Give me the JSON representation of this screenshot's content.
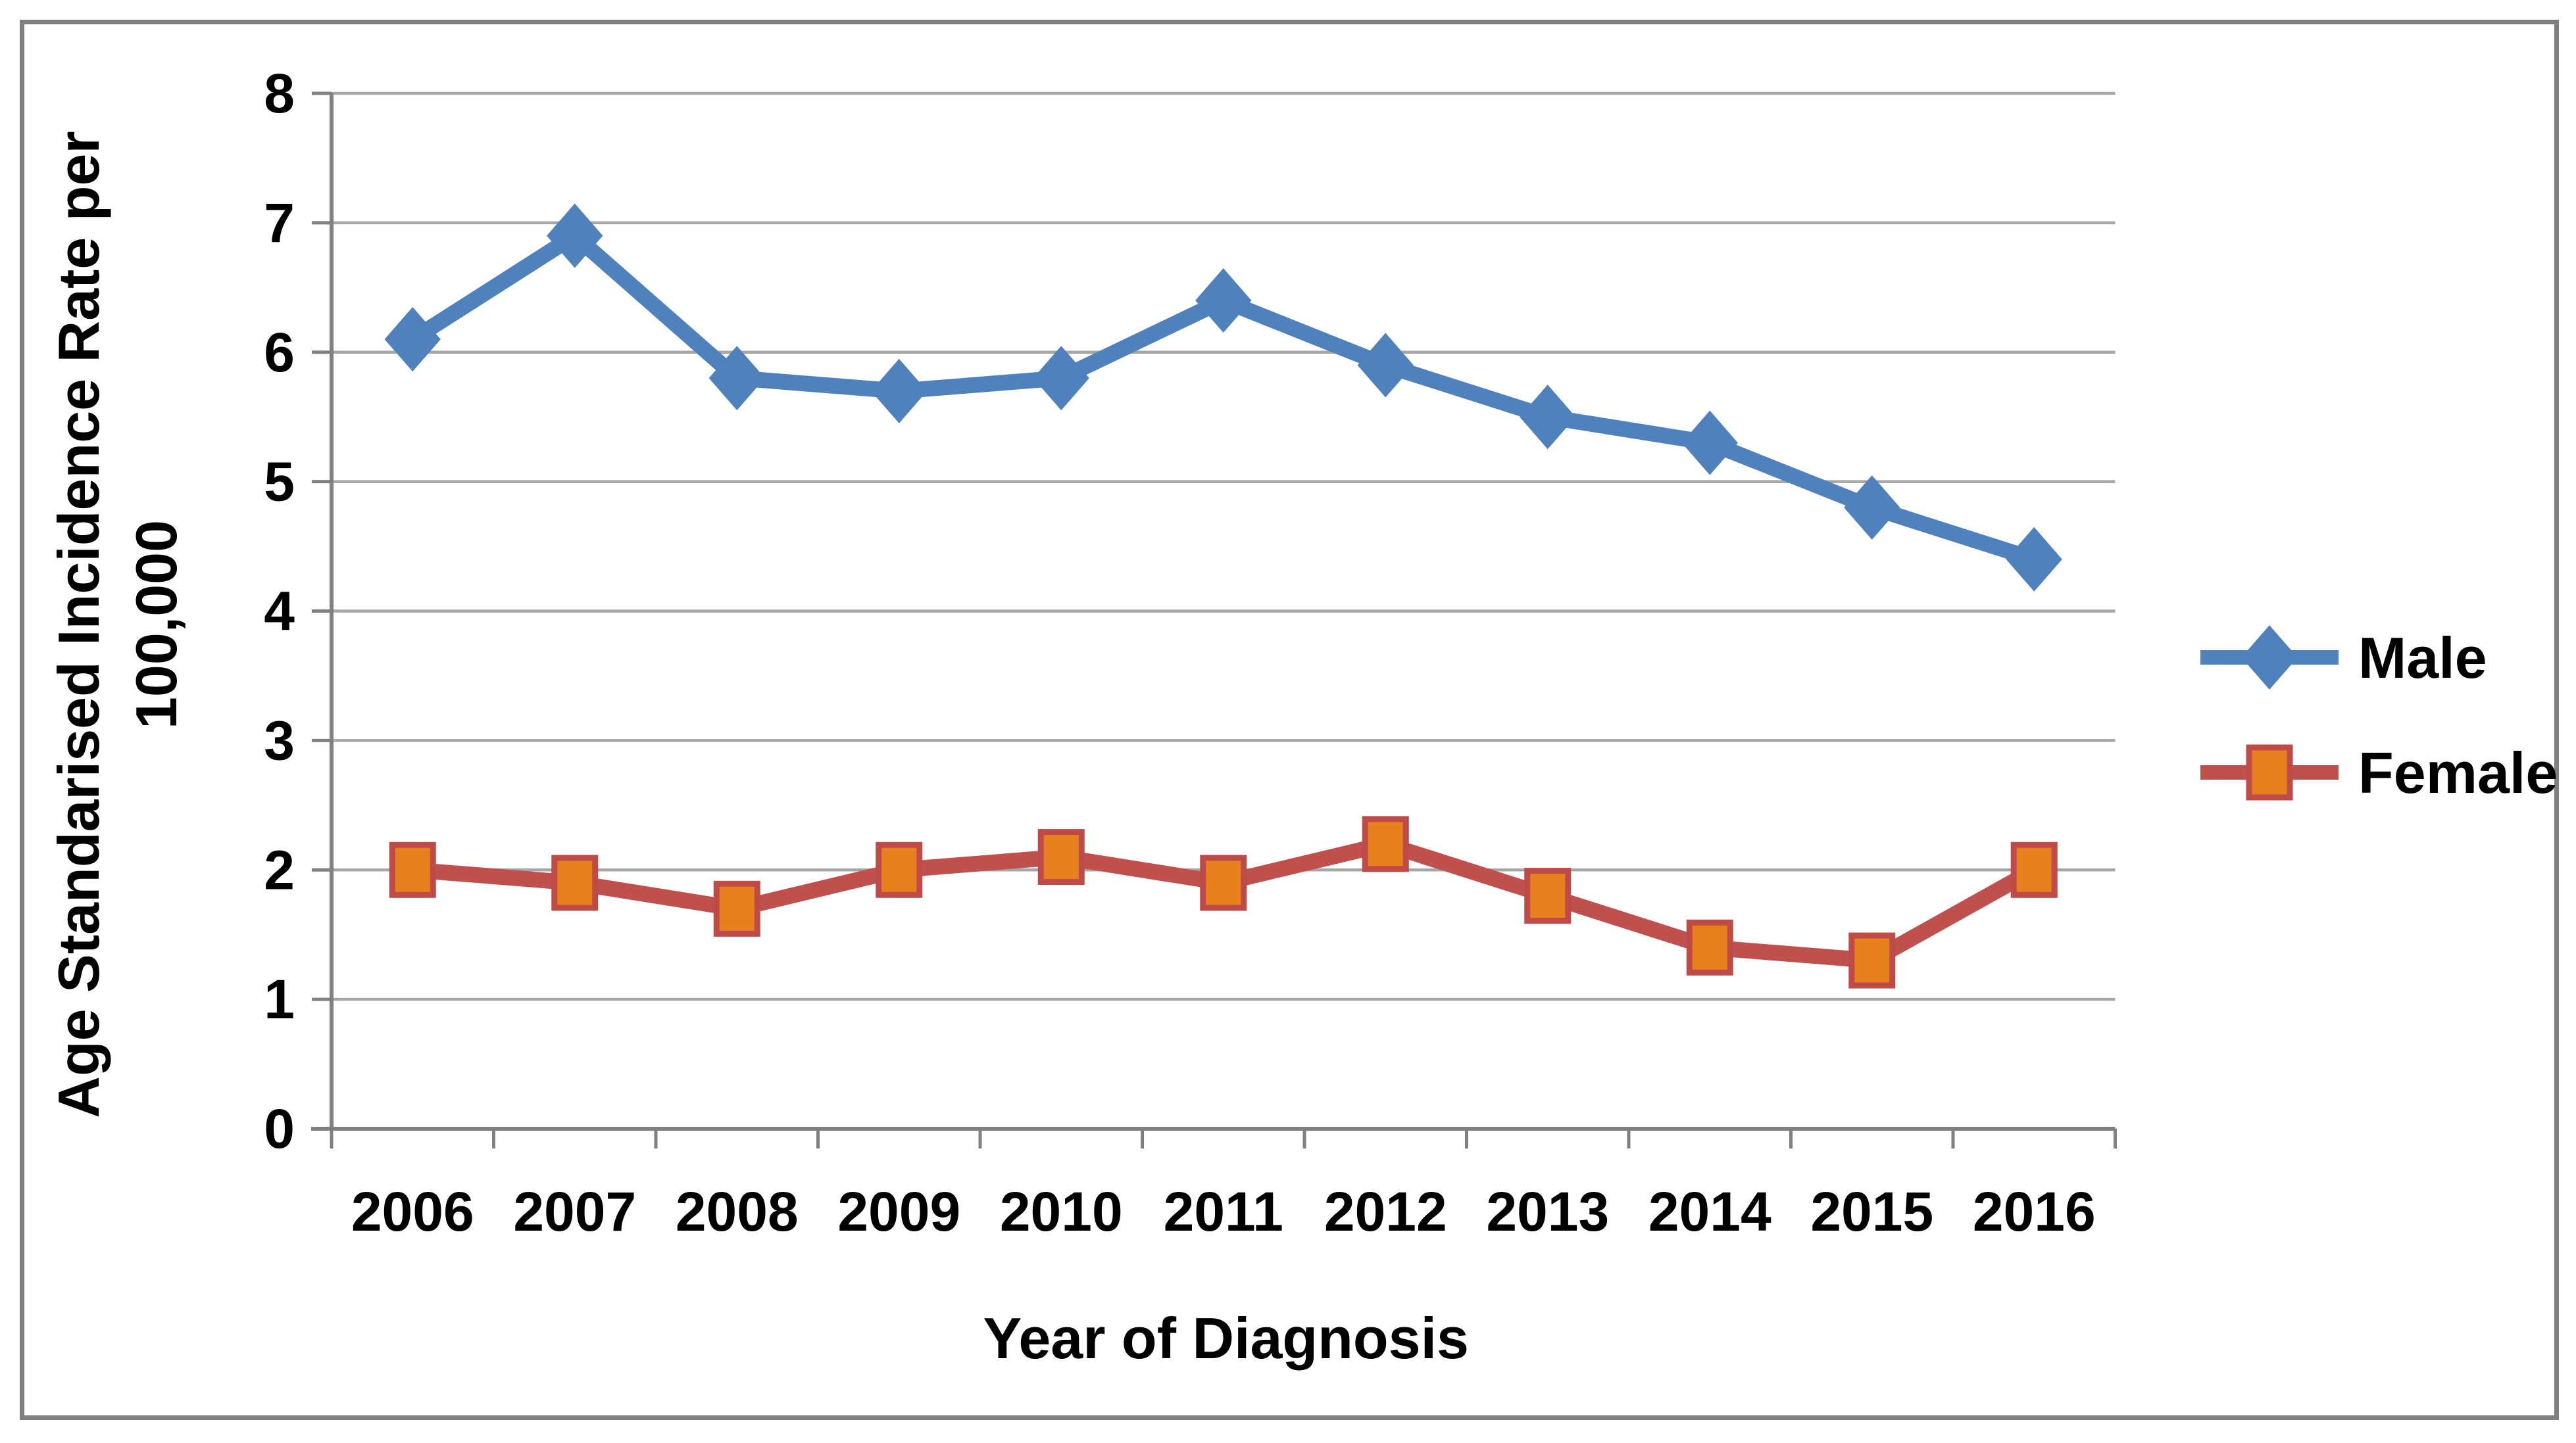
{
  "window": {
    "background": "#FFFFFF",
    "frame_border_color": "#7F7F7F"
  },
  "chart_data": {
    "type": "line",
    "title": "",
    "categories": [
      "2006",
      "2007",
      "2008",
      "2009",
      "2010",
      "2011",
      "2012",
      "2013",
      "2014",
      "2015",
      "2016"
    ],
    "series": [
      {
        "name": "Male",
        "values": [
          6.1,
          6.9,
          5.8,
          5.7,
          5.8,
          6.4,
          5.9,
          5.5,
          5.3,
          4.8,
          4.4
        ],
        "line_color": "#4F81BD",
        "marker": "diamond",
        "marker_fill": "#4F81BD",
        "marker_stroke": "#4F81BD"
      },
      {
        "name": "Female",
        "values": [
          2.0,
          1.9,
          1.7,
          2.0,
          2.1,
          1.9,
          2.2,
          1.8,
          1.4,
          1.3,
          2.0
        ],
        "line_color": "#C0504D",
        "marker": "square",
        "marker_fill": "#E8801E",
        "marker_stroke": "#BE4B48"
      }
    ],
    "xlabel": "Year of Diagnosis",
    "ylabel_lines": [
      "Age Standarised Incidence Rate per",
      "100,000"
    ],
    "ylim": [
      0,
      8
    ],
    "ytick_step": 1,
    "yticks": [
      "0",
      "1",
      "2",
      "3",
      "4",
      "5",
      "6",
      "7",
      "8"
    ],
    "grid": true,
    "legend_position": "right",
    "colors": {
      "grid": "#A6A6A6",
      "axis": "#808080",
      "tick": "#808080",
      "text": "#000000"
    }
  }
}
